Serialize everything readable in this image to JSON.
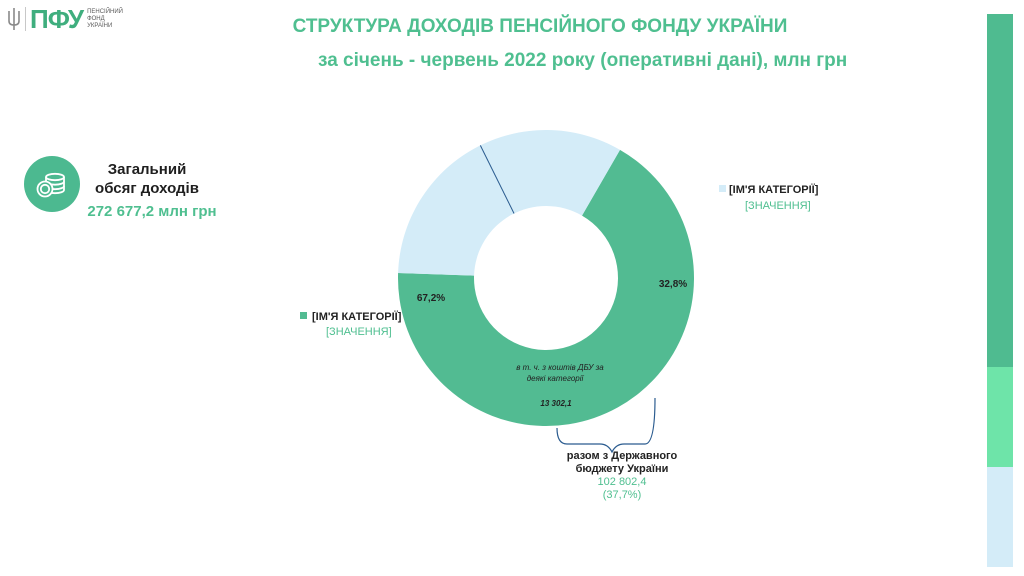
{
  "header": {
    "logo_text": "ПФУ",
    "logo_subtitle": "ПЕНСІЙНИЙ ФОНД УКРАЇНИ",
    "title": "СТРУКТУРА  ДОХОДІВ ПЕНСІЙНОГО ФОНДУ УКРАЇНИ",
    "subtitle": "за січень - червень 2022 року (оперативні дані), млн грн"
  },
  "total": {
    "icon": "coins-icon",
    "label_line1": "Загальний",
    "label_line2": "обсяг доходів",
    "value": "272 677,2 млн грн"
  },
  "colors": {
    "green": "#52bb92",
    "light_blue": "#d4ecf8",
    "accent_green": "#6ee4a9",
    "title_green": "#4fbf90"
  },
  "chart_data": {
    "type": "pie",
    "donut": true,
    "slices": [
      {
        "label": "[ІМ'Я КАТЕГОРІЇ]",
        "value_label": "[ЗНАЧЕННЯ]",
        "percent": 67.2,
        "percent_label": "67,2%",
        "color": "#52bb92"
      },
      {
        "label": "[ІМ'Я КАТЕГОРІЇ]",
        "value_label": "[ЗНАЧЕННЯ]",
        "percent": 32.8,
        "percent_label": "32,8%",
        "color": "#d4ecf8"
      }
    ],
    "sub_segment": {
      "lines": [
        "в т. ч. з коштів ДБУ за",
        "деякі категорії"
      ],
      "value": "13 302,1",
      "percent_of_total": 4.9
    },
    "bracket": {
      "lines": [
        "разом з Державного",
        "бюджету України"
      ],
      "value": "102 802,4",
      "percent": "(37,7%)"
    }
  }
}
